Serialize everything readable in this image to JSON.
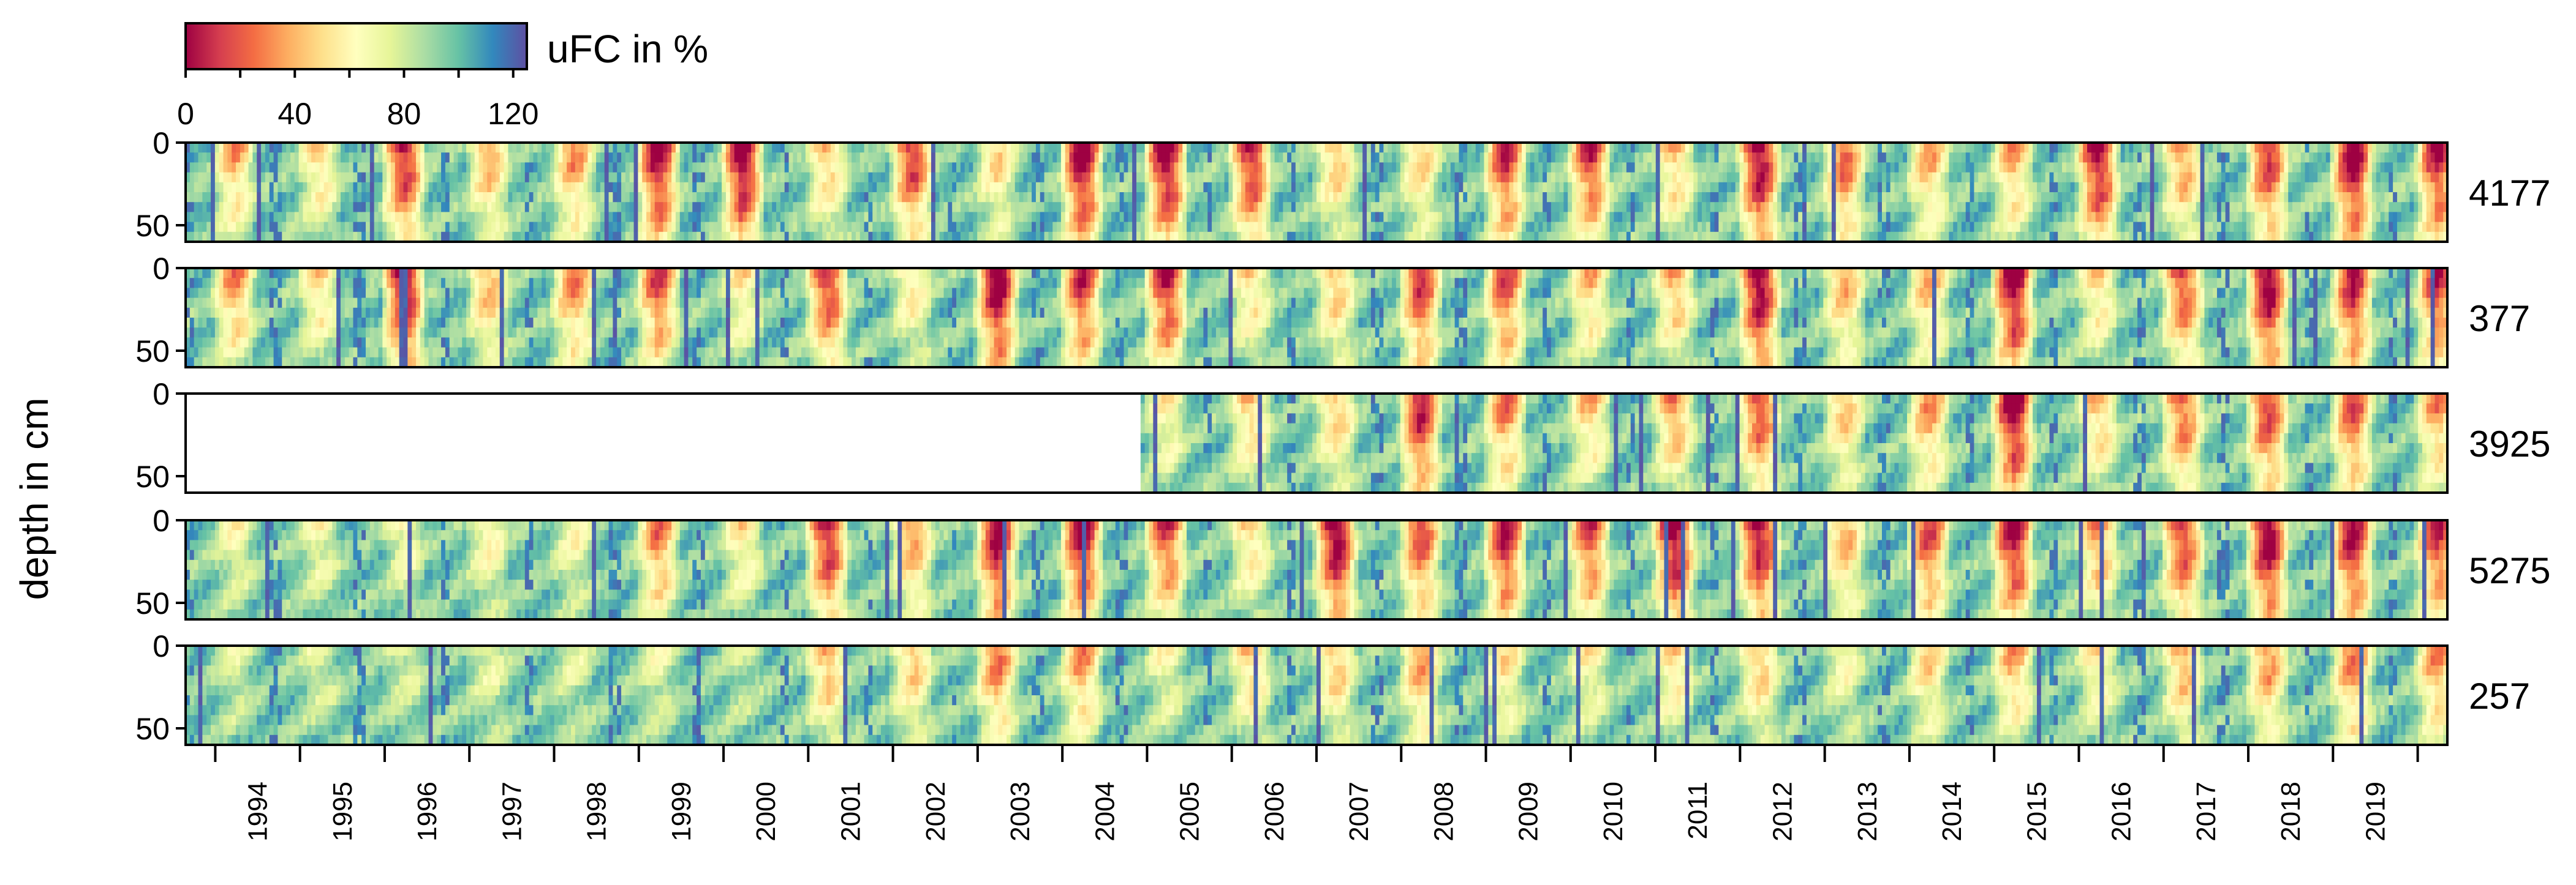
{
  "chart_data": {
    "type": "heatmap",
    "ylabel": "depth in cm",
    "x_ticks": [
      "1994",
      "1995",
      "1996",
      "1997",
      "1998",
      "1999",
      "2000",
      "2001",
      "2002",
      "2003",
      "2004",
      "2005",
      "2006",
      "2007",
      "2008",
      "2009",
      "2010",
      "2011",
      "2012",
      "2013",
      "2014",
      "2015",
      "2016",
      "2017",
      "2018",
      "2019"
    ],
    "colorbar": {
      "label": "uFC in %",
      "ticks": [
        "0",
        "40",
        "80",
        "120"
      ],
      "range": [
        0,
        125
      ],
      "stops": [
        "#9e0142",
        "#d53e4f",
        "#f46d43",
        "#fdae61",
        "#fee08b",
        "#ffffbf",
        "#e6f598",
        "#abdda4",
        "#66c2a5",
        "#3288bd",
        "#5e4fa2"
      ]
    },
    "panels": [
      {
        "station": "4177",
        "start_year": 1993.0,
        "y_ticks": [
          "0",
          "50"
        ],
        "ylim": [
          0,
          60
        ],
        "dry_summers": [
          1993,
          1994,
          1995,
          1996,
          1997,
          1998,
          1999,
          2000,
          2001,
          2002,
          2003,
          2004,
          2005,
          2006,
          2007,
          2008,
          2009,
          2010,
          2011,
          2012,
          2013,
          2014,
          2015,
          2016,
          2017,
          2018,
          2019
        ],
        "intensity": [
          0.55,
          0.45,
          0.85,
          0.55,
          0.6,
          0.9,
          0.95,
          0.5,
          0.8,
          0.45,
          0.95,
          0.95,
          0.85,
          0.5,
          0.45,
          0.8,
          0.8,
          0.5,
          0.95,
          0.7,
          0.55,
          0.55,
          0.9,
          0.6,
          0.8,
          0.95,
          0.85
        ]
      },
      {
        "station": "377",
        "start_year": 1993.0,
        "y_ticks": [
          "0",
          "50"
        ],
        "ylim": [
          0,
          60
        ],
        "intensity": [
          0.6,
          0.45,
          0.95,
          0.55,
          0.65,
          0.75,
          0.4,
          0.8,
          0.4,
          0.95,
          0.8,
          0.85,
          0.45,
          0.5,
          0.8,
          0.75,
          0.5,
          0.55,
          0.95,
          0.55,
          0.55,
          0.95,
          0.45,
          0.75,
          0.95,
          0.85,
          0.8
        ]
      },
      {
        "station": "3925",
        "start_year": 2004.3,
        "y_ticks": [
          "0",
          "50"
        ],
        "ylim": [
          0,
          60
        ],
        "intensity": [
          0,
          0,
          0,
          0,
          0,
          0,
          0,
          0,
          0,
          0,
          0,
          0.35,
          0.5,
          0.5,
          0.85,
          0.65,
          0.5,
          0.6,
          0.75,
          0.5,
          0.6,
          0.95,
          0.5,
          0.7,
          0.8,
          0.75,
          0.6
        ]
      },
      {
        "station": "5275",
        "start_year": 1993.0,
        "y_ticks": [
          "0",
          "50"
        ],
        "ylim": [
          0,
          60
        ],
        "intensity": [
          0.3,
          0.3,
          0.3,
          0.35,
          0.3,
          0.65,
          0.4,
          0.85,
          0.6,
          0.9,
          0.9,
          0.75,
          0.45,
          0.95,
          0.75,
          0.85,
          0.75,
          0.95,
          0.9,
          0.55,
          0.75,
          0.9,
          0.6,
          0.8,
          0.95,
          0.9,
          0.8
        ]
      },
      {
        "station": "257",
        "start_year": 1993.0,
        "y_ticks": [
          "0",
          "50"
        ],
        "ylim": [
          0,
          60
        ],
        "intensity": [
          0.2,
          0.2,
          0.2,
          0.25,
          0.2,
          0.25,
          0.15,
          0.55,
          0.5,
          0.65,
          0.6,
          0.3,
          0.5,
          0.5,
          0.6,
          0.4,
          0.35,
          0.45,
          0.5,
          0.3,
          0.45,
          0.55,
          0.4,
          0.55,
          0.6,
          0.65,
          0.6
        ]
      }
    ]
  }
}
